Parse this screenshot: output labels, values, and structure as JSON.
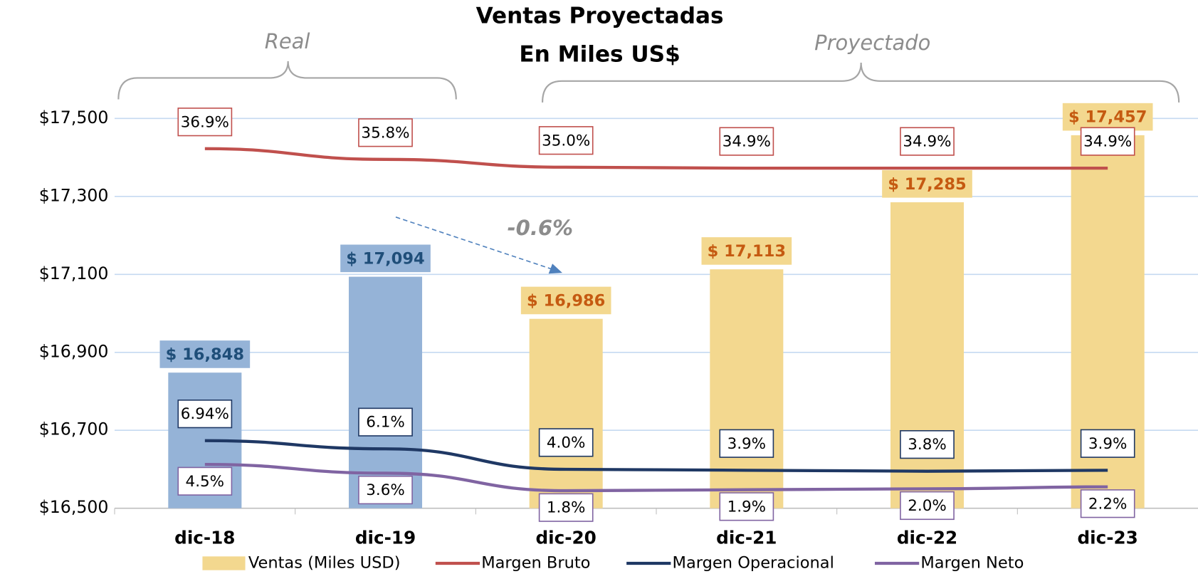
{
  "chart_data": {
    "type": "bar",
    "title": "Ventas Proyectadas",
    "subtitle": "En Miles US$",
    "annotations": [
      "Real",
      "Proyectado",
      "-0.6%"
    ],
    "categories": [
      "dic-18",
      "dic-19",
      "dic-20",
      "dic-21",
      "dic-22",
      "dic-23"
    ],
    "ylim": [
      16500,
      17500
    ],
    "yticks": [
      {
        "value": 16500,
        "label": "$16,500"
      },
      {
        "value": 16700,
        "label": "$16,700"
      },
      {
        "value": 16900,
        "label": "$16,900"
      },
      {
        "value": 17100,
        "label": "$17,100"
      },
      {
        "value": 17300,
        "label": "$17,300"
      },
      {
        "value": 17500,
        "label": "$17,500"
      }
    ],
    "y2lim": [
      0,
      40
    ],
    "grid": true,
    "series": [
      {
        "name": "Ventas (Miles USD)",
        "type": "bar",
        "color": "#f3d88f",
        "point_colors": [
          "#95b3d7",
          "#95b3d7",
          "#f3d88f",
          "#f3d88f",
          "#f3d88f",
          "#f3d88f"
        ],
        "label_colors": [
          "#1f4e79",
          "#1f4e79",
          "#c55a11",
          "#c55a11",
          "#c55a11",
          "#c55a11"
        ],
        "values": [
          16848,
          17094,
          16986,
          17113,
          17285,
          17457
        ],
        "value_labels": [
          "$ 16,848",
          "$ 17,094",
          "$ 16,986",
          "$ 17,113",
          "$ 17,285",
          "$ 17,457"
        ]
      },
      {
        "name": "Margen Bruto",
        "type": "line",
        "axis": "y2",
        "color": "#c0504d",
        "values": [
          36.9,
          35.8,
          35.0,
          34.9,
          34.9,
          34.9
        ],
        "value_labels": [
          "36.9%",
          "35.8%",
          "35.0%",
          "34.9%",
          "34.9%",
          "34.9%"
        ]
      },
      {
        "name": "Margen Operacional",
        "type": "line",
        "axis": "y2",
        "color": "#1f3864",
        "values": [
          6.94,
          6.1,
          4.0,
          3.9,
          3.8,
          3.9
        ],
        "value_labels": [
          "6.94%",
          "6.1%",
          "4.0%",
          "3.9%",
          "3.8%",
          "3.9%"
        ]
      },
      {
        "name": "Margen Neto",
        "type": "line",
        "axis": "y2",
        "color": "#8064a2",
        "values": [
          4.5,
          3.6,
          1.8,
          1.9,
          2.0,
          2.2
        ],
        "value_labels": [
          "4.5%",
          "3.6%",
          "1.8%",
          "1.9%",
          "2.0%",
          "2.2%"
        ]
      }
    ]
  }
}
